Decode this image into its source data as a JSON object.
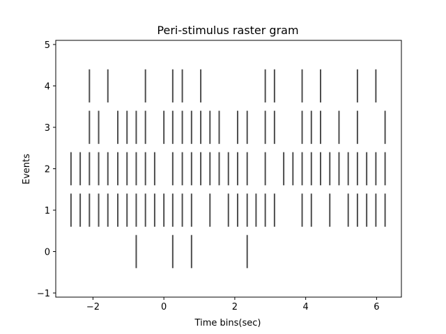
{
  "chart_data": {
    "type": "scatter",
    "title": "Peri-stimulus raster gram",
    "xlabel": "Time bins(sec)",
    "ylabel": "Events",
    "xlim": [
      -3.05,
      6.7
    ],
    "ylim": [
      -1.1,
      5.1
    ],
    "xticks": [
      -2,
      0,
      2,
      4,
      6
    ],
    "xtick_labels": [
      "−2",
      "0",
      "2",
      "4",
      "6"
    ],
    "yticks": [
      -1,
      0,
      1,
      2,
      3,
      4,
      5
    ],
    "ytick_labels": [
      "−1",
      "0",
      "1",
      "2",
      "3",
      "4",
      "5"
    ],
    "line_length": 0.8,
    "line_color": "#4d4d4d",
    "grid": false,
    "series": [
      {
        "offset": 0,
        "events": [
          -0.78,
          0.25,
          0.78,
          2.35
        ]
      },
      {
        "offset": 1,
        "events": [
          -2.62,
          -2.36,
          -2.1,
          -1.84,
          -1.58,
          -1.3,
          -1.04,
          -0.78,
          -0.52,
          -0.26,
          0.0,
          0.25,
          0.52,
          0.78,
          1.3,
          1.82,
          2.08,
          2.35,
          2.6,
          2.86,
          3.12,
          3.9,
          4.16,
          4.68,
          5.2,
          5.46,
          5.72,
          5.98,
          6.24
        ]
      },
      {
        "offset": 2,
        "events": [
          -2.62,
          -2.36,
          -2.1,
          -1.84,
          -1.58,
          -1.3,
          -1.04,
          -0.78,
          -0.52,
          -0.26,
          0.25,
          0.52,
          0.78,
          1.04,
          1.3,
          1.56,
          1.82,
          2.08,
          2.35,
          2.86,
          3.38,
          3.64,
          3.9,
          4.16,
          4.42,
          4.68,
          4.94,
          5.2,
          5.46,
          5.72,
          5.98,
          6.24
        ]
      },
      {
        "offset": 3,
        "events": [
          -2.1,
          -1.84,
          -1.3,
          -1.04,
          -0.78,
          -0.52,
          0.0,
          0.25,
          0.52,
          0.78,
          1.04,
          1.3,
          1.56,
          2.08,
          2.35,
          2.86,
          3.12,
          3.9,
          4.16,
          4.42,
          4.94,
          5.46,
          6.24
        ]
      },
      {
        "offset": 4,
        "events": [
          -2.1,
          -1.58,
          -0.52,
          0.25,
          0.52,
          1.04,
          2.86,
          3.12,
          3.9,
          4.42,
          5.46,
          5.98
        ]
      }
    ]
  }
}
